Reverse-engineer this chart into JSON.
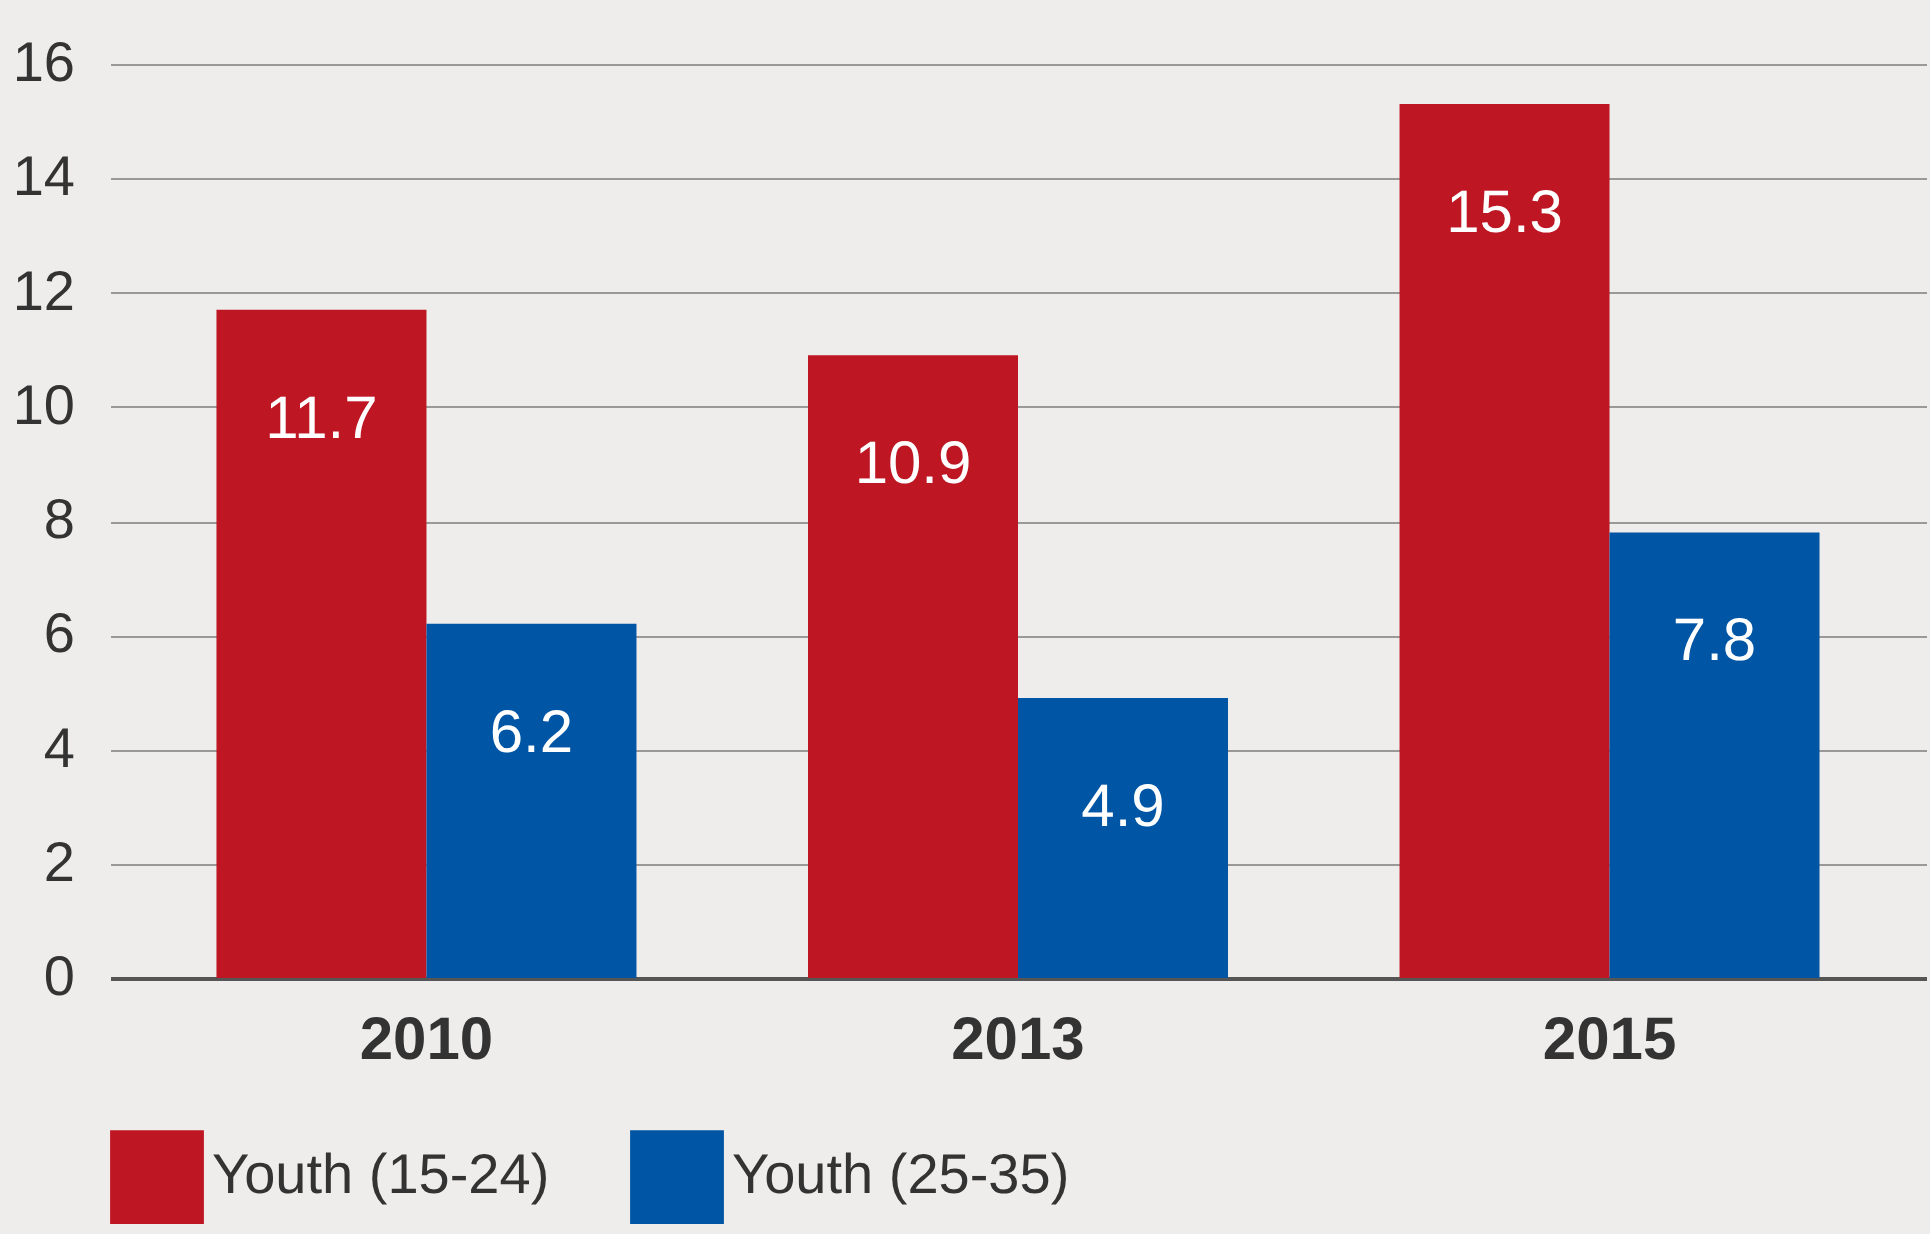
{
  "chart_data": {
    "type": "bar",
    "categories": [
      "2010",
      "2013",
      "2015"
    ],
    "series": [
      {
        "name": "Youth (15-24)",
        "color": "#be1622",
        "values": [
          11.7,
          10.9,
          15.3
        ]
      },
      {
        "name": "Youth (25-35)",
        "color": "#0055a4",
        "values": [
          6.2,
          4.9,
          7.8
        ]
      }
    ],
    "ylim": [
      0,
      16
    ],
    "yticks": [
      0,
      2,
      4,
      6,
      8,
      10,
      12,
      14,
      16
    ],
    "grid": "y",
    "legend": "bottom",
    "data_labels": true
  }
}
